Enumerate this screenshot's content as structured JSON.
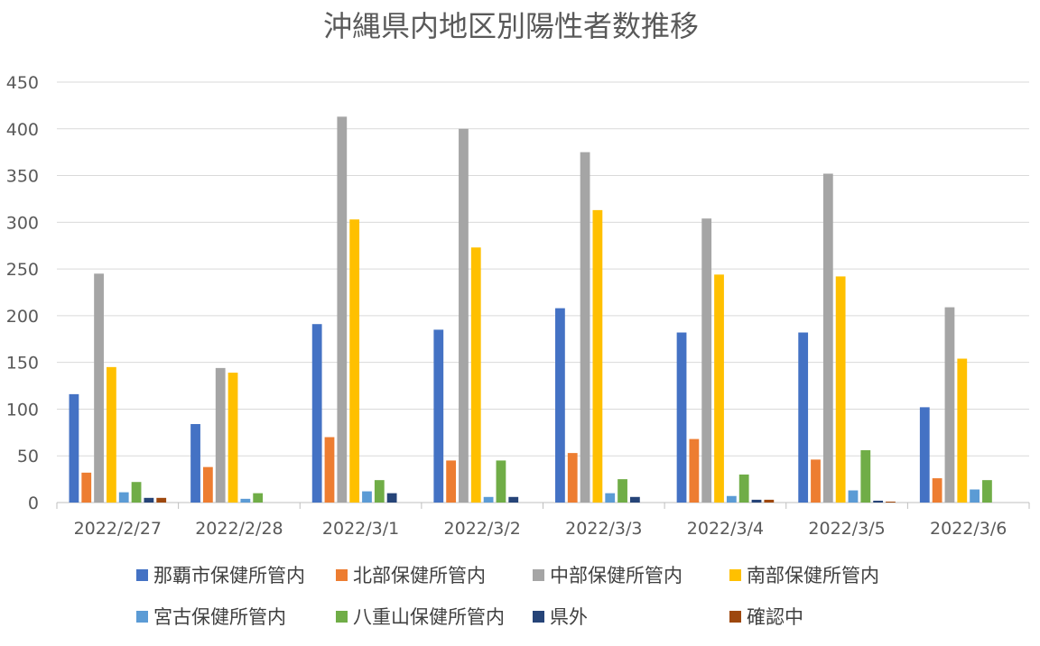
{
  "chart_data": {
    "type": "bar",
    "title": "沖縄県内地区別陽性者数推移",
    "xlabel": "",
    "ylabel": "",
    "ylim": [
      0,
      450
    ],
    "yticks": [
      0,
      50,
      100,
      150,
      200,
      250,
      300,
      350,
      400,
      450
    ],
    "grid": true,
    "legend_position": "bottom",
    "categories": [
      "2022/2/27",
      "2022/2/28",
      "2022/3/1",
      "2022/3/2",
      "2022/3/3",
      "2022/3/4",
      "2022/3/5",
      "2022/3/6"
    ],
    "series": [
      {
        "name": "那覇市保健所管内",
        "color": "#4472c4",
        "values": [
          116,
          84,
          191,
          185,
          208,
          182,
          182,
          102
        ]
      },
      {
        "name": "北部保健所管内",
        "color": "#ed7d31",
        "values": [
          32,
          38,
          70,
          45,
          53,
          68,
          46,
          26
        ]
      },
      {
        "name": "中部保健所管内",
        "color": "#a5a5a5",
        "values": [
          245,
          144,
          413,
          400,
          375,
          304,
          352,
          209
        ]
      },
      {
        "name": "南部保健所管内",
        "color": "#ffc000",
        "values": [
          145,
          139,
          303,
          273,
          313,
          244,
          242,
          154
        ]
      },
      {
        "name": "宮古保健所管内",
        "color": "#5b9bd5",
        "values": [
          11,
          4,
          12,
          6,
          10,
          7,
          13,
          14
        ]
      },
      {
        "name": "八重山保健所管内",
        "color": "#70ad47",
        "values": [
          22,
          10,
          24,
          45,
          25,
          30,
          56,
          24
        ]
      },
      {
        "name": "県外",
        "color": "#264478",
        "values": [
          5,
          0,
          10,
          6,
          6,
          3,
          2,
          0
        ]
      },
      {
        "name": "確認中",
        "color": "#9e480e",
        "values": [
          5,
          0,
          0,
          0,
          0,
          3,
          1,
          0
        ]
      }
    ]
  }
}
